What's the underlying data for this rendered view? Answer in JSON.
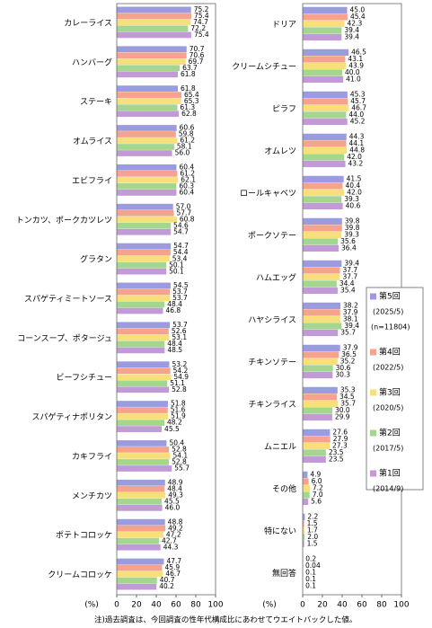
{
  "chart_data": [
    {
      "type": "bar",
      "orientation": "horizontal",
      "xlabel": "(%)",
      "categories": [
        "カレーライス",
        "ハンバーグ",
        "ステーキ",
        "オムライス",
        "エビフライ",
        "トンカツ、ポークカツレツ",
        "グラタン",
        "スパゲティミートソース",
        "コーンスープ、ポタージュ",
        "ビーフシチュー",
        "スパゲティナポリタン",
        "カキフライ",
        "メンチカツ",
        "ポテトコロッケ",
        "クリームコロッケ"
      ],
      "series": [
        {
          "color": "#9b9be0",
          "values": [
            75.2,
            70.7,
            61.8,
            60.6,
            60.4,
            57.0,
            54.7,
            54.5,
            53.7,
            53.2,
            51.8,
            50.4,
            48.9,
            48.8,
            47.7
          ],
          "value_labels": [
            "75.2",
            "70.7",
            "61.8",
            "60.6",
            "60.4",
            "57.0",
            "54.7",
            "54.5",
            "53.7",
            "53.2",
            "51.8",
            "50.4",
            "48.9",
            "48.8",
            "47.7"
          ]
        },
        {
          "color": "#f5a38c",
          "values": [
            75.4,
            70.6,
            65.4,
            59.8,
            61.2,
            57.7,
            54.4,
            53.7,
            52.6,
            54.2,
            51.6,
            52.8,
            48.4,
            49.2,
            45.9
          ],
          "value_labels": [
            "75.4",
            "70.6",
            "65.4",
            "59.8",
            "61.2",
            "57.7",
            "54.4",
            "53.7",
            "52.6",
            "54.2",
            "51.6",
            "52.8",
            "48.4",
            "49.2",
            "45.9"
          ]
        },
        {
          "color": "#f7e07c",
          "values": [
            74.7,
            69.7,
            65.3,
            61.2,
            62.1,
            60.8,
            53.4,
            53.7,
            53.1,
            54.9,
            51.9,
            54.1,
            49.3,
            47.2,
            46.7
          ],
          "value_labels": [
            "74.7",
            "69.7",
            "65.3",
            "61.2",
            "62.1",
            "60.8",
            "53.4",
            "53.7",
            "53.1",
            "54.9",
            "51.9",
            "54.1",
            "49.3",
            "47.2",
            "46.7"
          ]
        },
        {
          "color": "#a3d78f",
          "values": [
            72.2,
            63.7,
            61.3,
            58.1,
            60.3,
            54.6,
            50.1,
            48.4,
            48.4,
            51.1,
            48.2,
            52.8,
            45.5,
            42.7,
            40.7
          ],
          "value_labels": [
            "72.2",
            "63.7",
            "61.3",
            "58.1",
            "60.3",
            "54.6",
            "50.1",
            "48.4",
            "48.4",
            "51.1",
            "48.2",
            "52.8",
            "45.5",
            "42.7",
            "40.7"
          ]
        },
        {
          "color": "#c39ad8",
          "values": [
            75.4,
            61.8,
            62.8,
            56.0,
            60.4,
            54.7,
            50.1,
            46.8,
            48.5,
            52.8,
            45.5,
            55.7,
            46.0,
            44.3,
            40.2
          ],
          "value_labels": [
            "75.4",
            "61.8",
            "62.8",
            "56.0",
            "60.4",
            "54.7",
            "50.1",
            "46.8",
            "48.5",
            "52.8",
            "45.5",
            "55.7",
            "46.0",
            "44.3",
            "40.2"
          ]
        }
      ],
      "xlim": [
        0,
        100
      ],
      "xticks": [
        0,
        20,
        40,
        60,
        80,
        100
      ]
    },
    {
      "type": "bar",
      "orientation": "horizontal",
      "xlabel": "(%)",
      "categories": [
        "ドリア",
        "クリームシチュー",
        "ピラフ",
        "オムレツ",
        "ロールキャベツ",
        "ポークソテー",
        "ハムエッグ",
        "ハヤシライス",
        "チキンソテー",
        "チキンライス",
        "ムニエル",
        "その他",
        "特にない",
        "無回答"
      ],
      "series": [
        {
          "name": "第5回",
          "period": "(2025/5)",
          "n": "(n=11804)",
          "color": "#9b9be0",
          "values": [
            45.0,
            46.5,
            45.3,
            44.3,
            41.5,
            39.8,
            39.4,
            38.2,
            37.9,
            35.3,
            27.6,
            4.9,
            2.2,
            0.2
          ],
          "value_labels": [
            "45.0",
            "46.5",
            "45.3",
            "44.3",
            "41.5",
            "39.8",
            "39.4",
            "38.2",
            "37.9",
            "35.3",
            "27.6",
            "4.9",
            "2.2",
            "0.2"
          ]
        },
        {
          "name": "第4回",
          "period": "(2022/5)",
          "color": "#f5a38c",
          "values": [
            45.4,
            43.1,
            45.7,
            44.1,
            40.4,
            39.8,
            37.7,
            37.9,
            36.5,
            34.5,
            27.9,
            6.0,
            1.5,
            0.04
          ],
          "value_labels": [
            "45.4",
            "43.1",
            "45.7",
            "44.1",
            "40.4",
            "39.8",
            "37.7",
            "37.9",
            "36.5",
            "34.5",
            "27.9",
            "6.0",
            "1.5",
            "0.04"
          ]
        },
        {
          "name": "第3回",
          "period": "(2020/5)",
          "color": "#f7e07c",
          "values": [
            42.3,
            43.9,
            46.7,
            44.8,
            42.0,
            39.3,
            37.7,
            38.1,
            35.2,
            35.7,
            27.3,
            7.2,
            1.7,
            0.1
          ],
          "value_labels": [
            "42.3",
            "43.9",
            "46.7",
            "44.8",
            "42.0",
            "39.3",
            "37.7",
            "38.1",
            "35.2",
            "35.7",
            "27.3",
            "7.2",
            "1.7",
            "0.1"
          ]
        },
        {
          "name": "第2回",
          "period": "(2017/5)",
          "color": "#a3d78f",
          "values": [
            39.4,
            40.0,
            44.0,
            42.0,
            39.3,
            35.6,
            34.4,
            39.4,
            30.6,
            30.0,
            23.5,
            7.0,
            2.0,
            0.1
          ],
          "value_labels": [
            "39.4",
            "40.0",
            "44.0",
            "42.0",
            "39.3",
            "35.6",
            "34.4",
            "39.4",
            "30.6",
            "30.0",
            "23.5",
            "7.0",
            "2.0",
            "0.1"
          ]
        },
        {
          "name": "第1回",
          "period": "(2014/9)",
          "color": "#c39ad8",
          "values": [
            39.4,
            41.0,
            45.2,
            43.2,
            40.6,
            36.4,
            35.4,
            35.7,
            30.3,
            29.9,
            23.5,
            5.6,
            1.5,
            0.1
          ],
          "value_labels": [
            "39.4",
            "41.0",
            "45.2",
            "43.2",
            "40.6",
            "36.4",
            "35.4",
            "35.7",
            "30.3",
            "29.9",
            "23.5",
            "5.6",
            "1.5",
            "0.1"
          ]
        }
      ],
      "xlim": [
        0,
        100
      ],
      "xticks": [
        0,
        20,
        40,
        60,
        80,
        100
      ],
      "legend": "inside-right"
    }
  ],
  "note": "注)過去調査は、今回調査の性年代構成比にあわせてウエイトバックした値。"
}
